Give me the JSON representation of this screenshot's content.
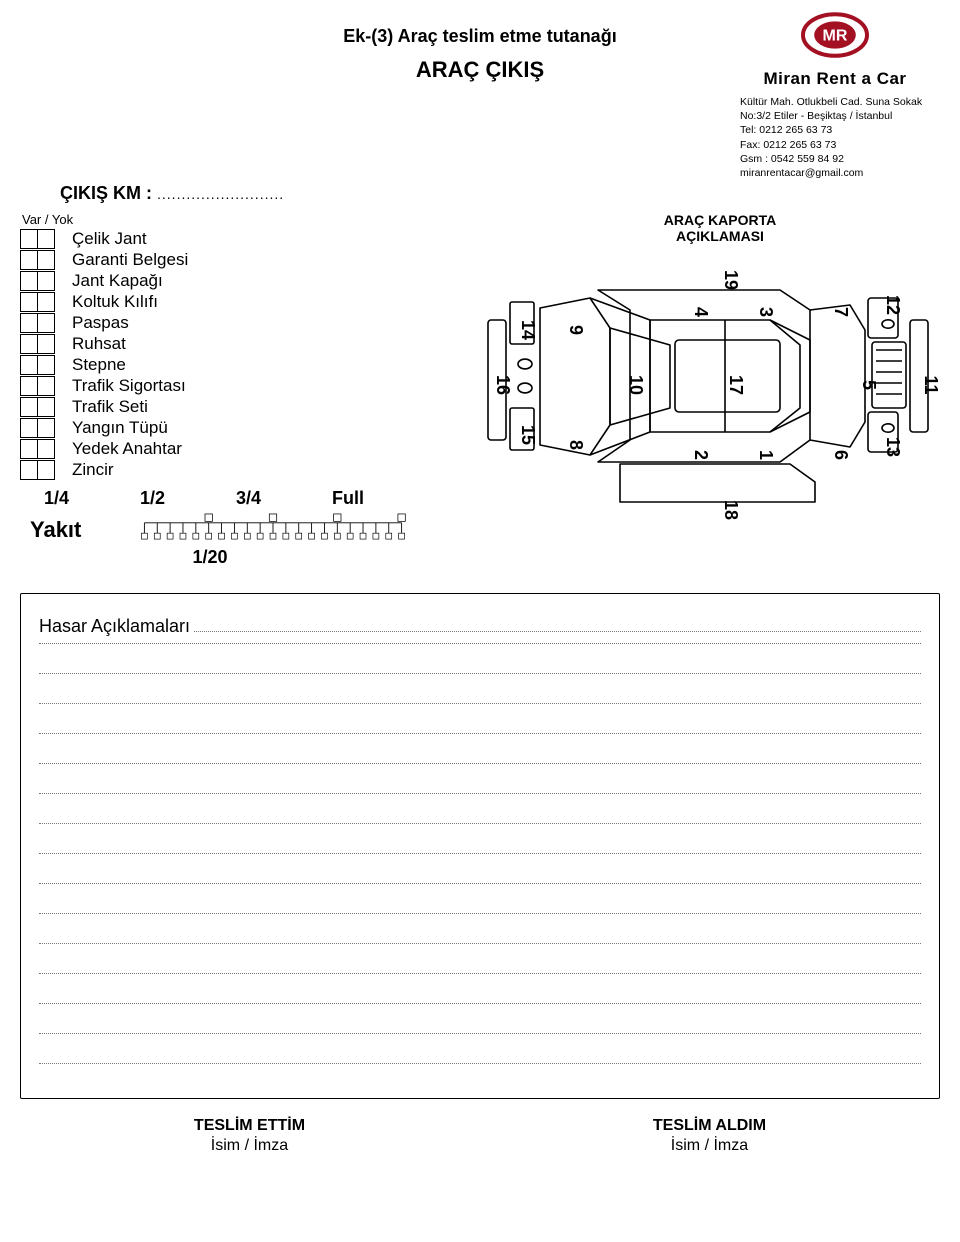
{
  "header": {
    "line1": "Ek-(3) Araç teslim etme tutanağı",
    "line2": "ARAÇ ÇIKIŞ"
  },
  "company": {
    "logo_text": "MR",
    "logo_color": "#a31022",
    "brand": "Miran Rent a Car",
    "address": [
      "Kültür Mah. Otlukbeli Cad. Suna Sokak",
      "No:3/2 Etiler - Beşiktaş / İstanbul",
      "Tel: 0212 265 63 73",
      "Fax: 0212 265 63 73",
      "Gsm : 0542 559 84 92",
      "miranrentacar@gmail.com"
    ]
  },
  "km": {
    "label": "ÇIKIŞ KM :",
    "dots": ".........................."
  },
  "checklist": {
    "header": "Var  /  Yok",
    "items": [
      "Çelik Jant",
      "Garanti Belgesi",
      "Jant Kapağı",
      "Koltuk Kılıfı",
      "Paspas",
      "Ruhsat",
      "Stepne",
      "Trafik Sigortası",
      "Trafik Seti",
      "Yangın Tüpü",
      "Yedek Anahtar",
      "Zincir"
    ]
  },
  "fuel": {
    "label": "Yakıt",
    "marks": [
      "1/4",
      "1/2",
      "3/4",
      "Full"
    ],
    "sub": "1/20",
    "total_ticks": 20,
    "major_every": 5
  },
  "diagram": {
    "title": "ARAÇ KAPORTA\nAÇIKLAMASI",
    "stroke": "#000000",
    "stroke_width": 1.6,
    "numbers": [
      "1",
      "2",
      "3",
      "4",
      "5",
      "6",
      "7",
      "8",
      "9",
      "10",
      "11",
      "12",
      "13",
      "14",
      "15",
      "16",
      "17",
      "18",
      "19"
    ],
    "number_fontsize": 18
  },
  "damage": {
    "title": "Hasar Açıklamaları",
    "lines": 15
  },
  "signatures": {
    "left": {
      "l1": "TESLİM ETTİM",
      "l2": "İsim / İmza"
    },
    "right": {
      "l1": "TESLİM ALDIM",
      "l2": "İsim / İmza"
    }
  }
}
